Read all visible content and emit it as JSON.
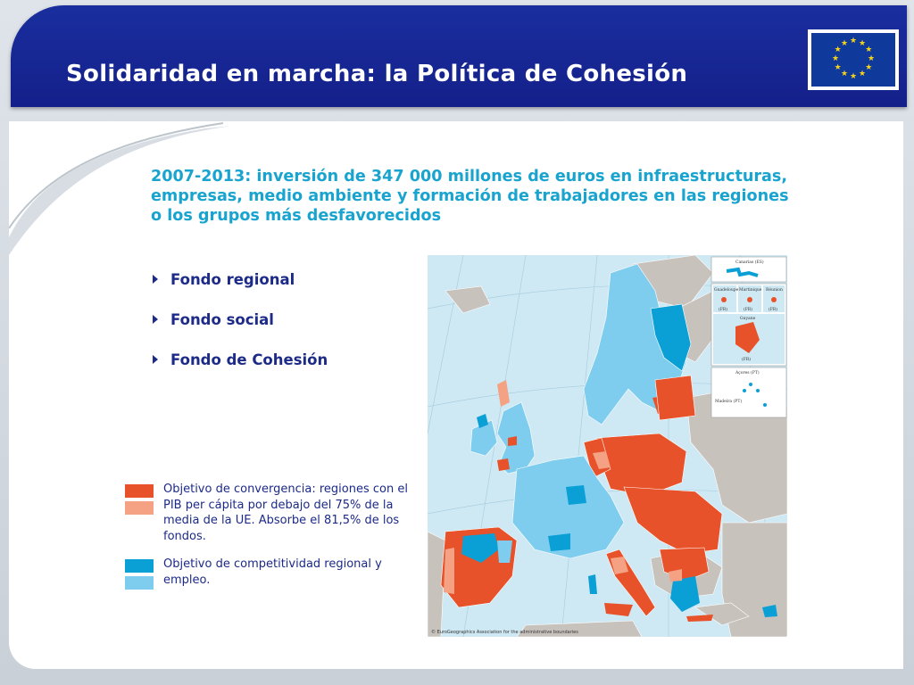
{
  "slide": {
    "title": "Solidaridad en marcha: la Política de Cohesión",
    "subtitle": "2007-2013: inversión de 347 000 millones de euros en infraestructuras, empresas, medio ambiente y formación de trabajadores en las regiones o los grupos más desfavorecidos"
  },
  "bullets": [
    {
      "label": "Fondo regional"
    },
    {
      "label": "Fondo social"
    },
    {
      "label": "Fondo de Cohesión"
    }
  ],
  "legend": [
    {
      "text": "Objetivo de convergencia: regiones con el PIB per cápita por debajo del 75% de la media de la UE. Absorbe el 81,5% de los fondos.",
      "colors": [
        "#e8522a",
        "#f4a184"
      ]
    },
    {
      "text": "Objetivo de competitividad regional y empleo.",
      "colors": [
        "#0aa0d6",
        "#7fcdee"
      ]
    }
  ],
  "map": {
    "insets": {
      "canarias": "Canarias (ES)",
      "guadeloupe": "Guadeloupe",
      "martinique": "Martinique",
      "reunion": "Réunion",
      "guyane": "Guyane",
      "fr1": "(FR)",
      "fr2": "(FR)",
      "fr3": "(FR)",
      "fr4": "(FR)",
      "acores": "Açores (PT)",
      "madeira": "Madeira (PT)"
    },
    "copyright": "© EuroGeographics Association for the administrative boundaries"
  },
  "colors": {
    "header": "#1a2e9e",
    "convergence": "#e8522a",
    "phasing_out": "#f4a184",
    "competitiveness": "#0aa0d6",
    "phasing_in": "#7fcdee",
    "non_eu_land": "#c8c2bd",
    "sea": "#cfe9f4"
  }
}
